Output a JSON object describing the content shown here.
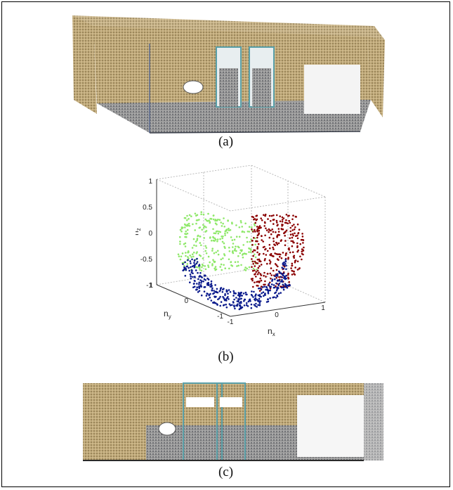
{
  "captions": {
    "a": "(a)",
    "b": "(b)",
    "c": "(c)"
  },
  "chart_data": {
    "type": "scatter",
    "title": "",
    "axes": {
      "x": {
        "label": "n",
        "subscript": "x",
        "range": [
          -1,
          1
        ],
        "ticks": [
          "-1",
          "0",
          "1"
        ]
      },
      "y": {
        "label": "n",
        "subscript": "y",
        "range": [
          -1,
          1
        ],
        "ticks": [
          "-1",
          "0",
          "1"
        ]
      },
      "z": {
        "label": "n",
        "subscript": "z",
        "range": [
          -1,
          1
        ],
        "ticks": [
          "1",
          "0.5",
          "0",
          "-0.5",
          "-1"
        ]
      }
    },
    "grid": true,
    "legend": "none",
    "series": [
      {
        "color": "#8fe86a",
        "cluster": "green"
      },
      {
        "color": "#8b0000",
        "cluster": "red"
      },
      {
        "color": "#0a1a8c",
        "cluster": "blue"
      }
    ]
  },
  "colors": {
    "wall": "#b8a171",
    "floor_grey": "#8c8c8c",
    "teal_frame": "#5aa0a8",
    "dark": "#3a3f4a"
  }
}
